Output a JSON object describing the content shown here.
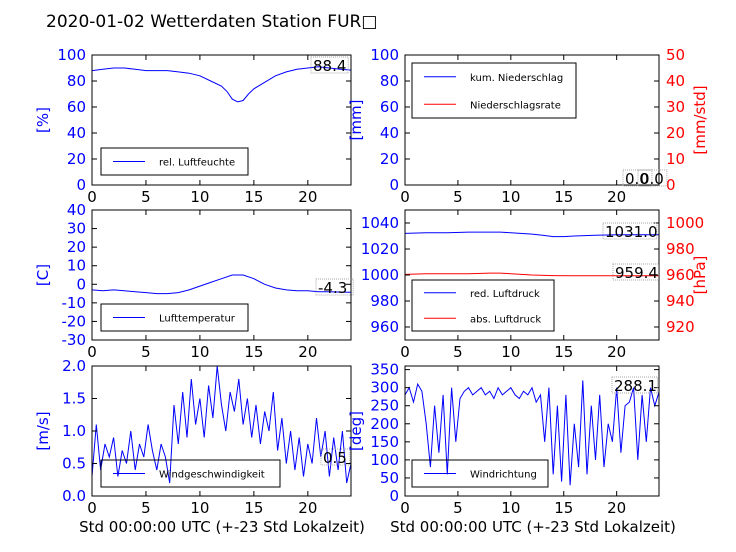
{
  "figure": {
    "title": "2020-01-02 Wetterdaten Station FUR□",
    "xlabel": "Std 00:00:00 UTC (+-23 Std Lokalzeit)"
  },
  "colors": {
    "primary": "#0000ff",
    "secondary": "#ff0000",
    "text": "#000000"
  },
  "chart_data": [
    {
      "id": "humidity",
      "type": "line",
      "xlim": [
        0,
        24
      ],
      "ylim": [
        0,
        100
      ],
      "xticks": [
        0,
        5,
        10,
        15,
        20
      ],
      "yticks": [
        0,
        20,
        40,
        60,
        80,
        100
      ],
      "ylabel": "[%]",
      "current_value": "88.4",
      "series": [
        {
          "name": "rel. Luftfeuchte",
          "color": "#0000ff",
          "x": [
            0,
            1,
            2,
            3,
            4,
            5,
            6,
            7,
            8,
            9,
            10,
            11,
            12,
            12.5,
            13,
            13.5,
            14,
            14.5,
            15,
            16,
            17,
            18,
            19,
            20,
            21,
            22,
            23,
            24
          ],
          "y": [
            88,
            89,
            90,
            90,
            89,
            88,
            88,
            88,
            87,
            86,
            84,
            80,
            76,
            72,
            66,
            64,
            65,
            70,
            74,
            79,
            84,
            87,
            89,
            90,
            91,
            90,
            89,
            88.4
          ]
        }
      ]
    },
    {
      "id": "precip",
      "type": "line",
      "xlim": [
        0,
        24
      ],
      "ylim": [
        0,
        100
      ],
      "xticks": [
        0,
        5,
        10,
        15,
        20
      ],
      "yticks": [
        0,
        20,
        40,
        60,
        80,
        100
      ],
      "ylabel": "[mm]",
      "y2lim": [
        0,
        50
      ],
      "y2ticks": [
        0,
        10,
        20,
        30,
        40,
        50
      ],
      "y2label": "[mm/std]",
      "current_value": "0.0",
      "current_value2": "0.0",
      "series": [
        {
          "name": "kum. Niederschlag",
          "color": "#0000ff",
          "x": [
            0,
            24
          ],
          "y": [
            0,
            0
          ]
        },
        {
          "name": "Niederschlagsrate",
          "color": "#ff0000",
          "axis": "right",
          "x": [
            0,
            24
          ],
          "y": [
            0,
            0
          ]
        }
      ]
    },
    {
      "id": "temperature",
      "type": "line",
      "xlim": [
        0,
        24
      ],
      "ylim": [
        -30,
        40
      ],
      "xticks": [
        0,
        5,
        10,
        15,
        20
      ],
      "yticks": [
        -30,
        -20,
        -10,
        0,
        10,
        20,
        30,
        40
      ],
      "ylabel": "[C]",
      "current_value": "-4.3",
      "series": [
        {
          "name": "Lufttemperatur",
          "color": "#0000ff",
          "x": [
            0,
            1,
            2,
            3,
            4,
            5,
            6,
            7,
            8,
            9,
            10,
            11,
            12,
            13,
            14,
            15,
            16,
            17,
            18,
            19,
            20,
            21,
            22,
            23,
            24
          ],
          "y": [
            -3,
            -3.5,
            -3,
            -3.5,
            -4,
            -4.5,
            -5,
            -5,
            -4.5,
            -3,
            -1,
            1,
            3,
            5,
            5,
            3,
            0,
            -2,
            -3,
            -3.5,
            -3.5,
            -4,
            -4,
            -4.2,
            -4.3
          ]
        }
      ]
    },
    {
      "id": "pressure",
      "type": "line",
      "xlim": [
        0,
        24
      ],
      "ylim": [
        950,
        1050
      ],
      "xticks": [
        0,
        5,
        10,
        15,
        20
      ],
      "yticks": [
        960,
        980,
        1000,
        1020,
        1040
      ],
      "ylabel": "",
      "y2lim": [
        910,
        1010
      ],
      "y2ticks": [
        920,
        940,
        960,
        980,
        1000
      ],
      "y2label": "[hPa]",
      "current_value": "1031.0",
      "current_value2": "959.4",
      "series": [
        {
          "name": "red. Luftdruck",
          "color": "#0000ff",
          "x": [
            0,
            2,
            4,
            6,
            8,
            9,
            10,
            12,
            13,
            14,
            15,
            16,
            18,
            20,
            22,
            24
          ],
          "y": [
            1032,
            1032.5,
            1032.5,
            1033,
            1033,
            1033,
            1032.5,
            1031.5,
            1030.5,
            1029.5,
            1029.5,
            1030,
            1030.5,
            1031,
            1031,
            1031
          ]
        },
        {
          "name": "abs. Luftdruck",
          "color": "#ff0000",
          "axis": "right",
          "x": [
            0,
            2,
            4,
            6,
            8,
            9,
            10,
            12,
            14,
            16,
            18,
            20,
            22,
            24
          ],
          "y": [
            960.5,
            961,
            961,
            961,
            961.5,
            961.5,
            961,
            960,
            959.5,
            959.4,
            959.4,
            959.4,
            959.4,
            959.4
          ]
        }
      ]
    },
    {
      "id": "wind_speed",
      "type": "line",
      "xlim": [
        0,
        24
      ],
      "ylim": [
        0,
        2.0
      ],
      "xticks": [
        0,
        5,
        10,
        15,
        20
      ],
      "yticks": [
        0.0,
        0.5,
        1.0,
        1.5,
        2.0
      ],
      "ylabel": "[m/s]",
      "current_value": "0.5",
      "series": [
        {
          "name": "Windgeschwindigkeit",
          "color": "#0000ff",
          "x": [
            0,
            0.4,
            0.8,
            1.2,
            1.6,
            2.0,
            2.4,
            2.8,
            3.2,
            3.6,
            4.0,
            4.4,
            4.8,
            5.2,
            5.6,
            6.0,
            6.4,
            6.8,
            7.2,
            7.6,
            8.0,
            8.4,
            8.8,
            9.2,
            9.6,
            10.0,
            10.4,
            10.8,
            11.2,
            11.6,
            12.0,
            12.4,
            12.8,
            13.2,
            13.6,
            14.0,
            14.4,
            14.8,
            15.2,
            15.6,
            16.0,
            16.4,
            16.8,
            17.2,
            17.6,
            18.0,
            18.4,
            18.8,
            19.2,
            19.6,
            20.0,
            20.4,
            20.8,
            21.2,
            21.6,
            22.0,
            22.4,
            22.8,
            23.2,
            23.6,
            24.0
          ],
          "y": [
            0.3,
            1.1,
            0.4,
            0.8,
            0.6,
            0.9,
            0.3,
            0.7,
            0.5,
            1.0,
            0.4,
            0.8,
            0.6,
            1.1,
            0.7,
            0.4,
            0.8,
            0.6,
            0.2,
            1.4,
            0.8,
            1.6,
            0.9,
            1.8,
            1.1,
            1.5,
            0.9,
            1.7,
            1.2,
            2.0,
            1.4,
            1.0,
            1.6,
            1.3,
            1.8,
            1.1,
            1.5,
            0.9,
            1.4,
            0.8,
            1.3,
            1.0,
            1.6,
            0.7,
            1.2,
            0.5,
            1.0,
            0.4,
            0.9,
            0.3,
            0.8,
            0.5,
            1.2,
            0.6,
            1.0,
            0.3,
            0.9,
            0.4,
            1.0,
            0.2,
            0.5
          ]
        }
      ]
    },
    {
      "id": "wind_direction",
      "type": "line",
      "xlim": [
        0,
        24
      ],
      "ylim": [
        0,
        360
      ],
      "xticks": [
        0,
        5,
        10,
        15,
        20
      ],
      "yticks": [
        0,
        50,
        100,
        150,
        200,
        250,
        300,
        350
      ],
      "ylabel": "[deg]",
      "current_value": "288.1",
      "series": [
        {
          "name": "Windrichtung",
          "color": "#0000ff",
          "x": [
            0,
            0.4,
            0.8,
            1.2,
            1.6,
            2.0,
            2.4,
            2.8,
            3.2,
            3.6,
            4.0,
            4.4,
            4.8,
            5.2,
            5.6,
            6.0,
            6.4,
            6.8,
            7.2,
            7.6,
            8.0,
            8.4,
            8.8,
            9.2,
            9.6,
            10.0,
            10.4,
            10.8,
            11.2,
            11.6,
            12.0,
            12.4,
            12.8,
            13.2,
            13.6,
            14.0,
            14.4,
            14.8,
            15.2,
            15.6,
            16.0,
            16.4,
            16.8,
            17.2,
            17.6,
            18.0,
            18.4,
            18.8,
            19.2,
            19.6,
            20.0,
            20.4,
            20.8,
            21.2,
            21.6,
            22.0,
            22.4,
            22.8,
            23.2,
            23.6,
            24.0
          ],
          "y": [
            280,
            300,
            260,
            310,
            290,
            200,
            80,
            250,
            120,
            280,
            60,
            300,
            150,
            270,
            290,
            300,
            280,
            290,
            300,
            280,
            290,
            270,
            300,
            280,
            290,
            300,
            280,
            270,
            290,
            280,
            300,
            260,
            280,
            150,
            300,
            60,
            250,
            40,
            280,
            30,
            200,
            80,
            320,
            60,
            250,
            100,
            280,
            80,
            200,
            150,
            300,
            120,
            250,
            260,
            300,
            100,
            280,
            150,
            300,
            250,
            288
          ]
        }
      ]
    }
  ]
}
